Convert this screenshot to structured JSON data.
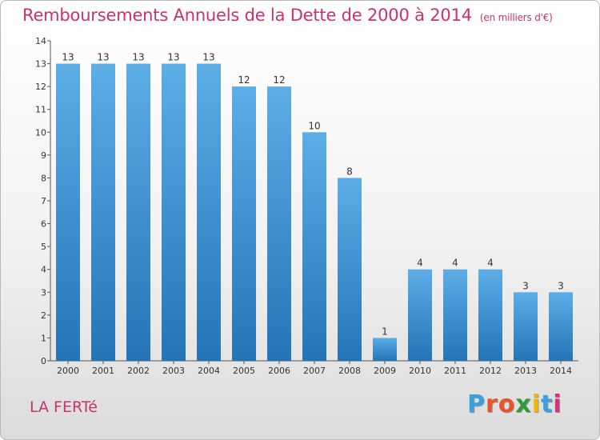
{
  "chart_data": {
    "type": "bar",
    "title": "Remboursements Annuels de la Dette de 2000 à 2014",
    "unit": "(en milliers d'€)",
    "categories": [
      "2000",
      "2001",
      "2002",
      "2003",
      "2004",
      "2005",
      "2006",
      "2007",
      "2008",
      "2009",
      "2010",
      "2011",
      "2012",
      "2013",
      "2014"
    ],
    "values": [
      13,
      13,
      13,
      13,
      13,
      12,
      12,
      10,
      8,
      1,
      4,
      4,
      4,
      3,
      3
    ],
    "data_labels": [
      "13",
      "13",
      "13",
      "13",
      "13",
      "12",
      "12",
      "10",
      "8",
      "1",
      "4",
      "4",
      "4",
      "3",
      "3"
    ],
    "ylim": [
      0,
      14
    ],
    "yticks": [
      "0",
      "1",
      "2",
      "3",
      "4",
      "5",
      "6",
      "7",
      "8",
      "9",
      "10",
      "11",
      "12",
      "13",
      "14"
    ],
    "xlabel": "",
    "ylabel": "",
    "grid": false,
    "bar_color_top": "#5dade7",
    "bar_color_bottom": "#2574b5"
  },
  "footer": {
    "city": "LA FERTé",
    "logo_text": "Proxiti",
    "logo_colors": [
      "#3aa1dc",
      "#e8542b",
      "#e8542b",
      "#2f9a3a",
      "#f2b705",
      "#3aa1dc",
      "#d5327a"
    ]
  },
  "colors": {
    "title": "#c8336e",
    "axis": "#333333"
  }
}
